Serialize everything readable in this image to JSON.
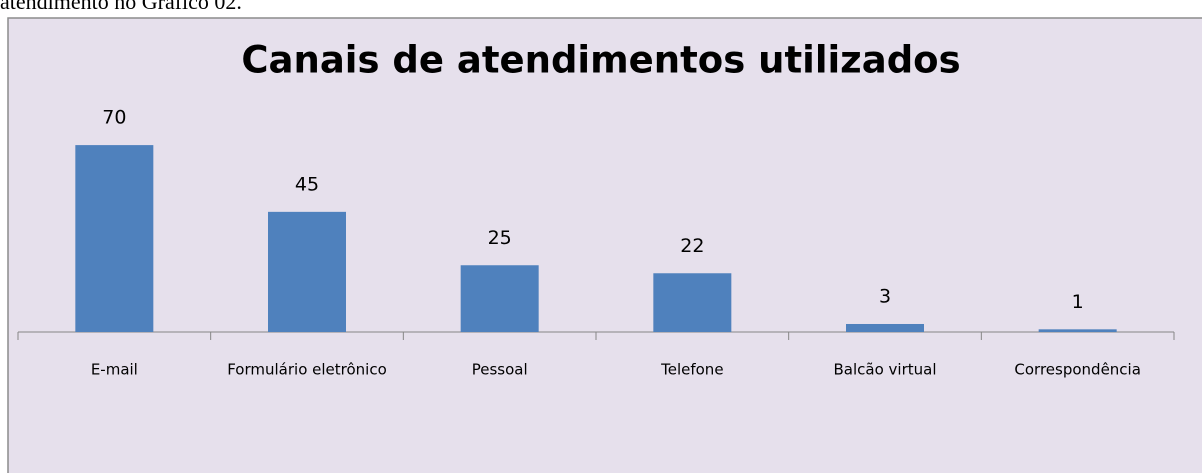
{
  "page_text": "atendimento no Gráfico 02.",
  "chart_data": {
    "type": "bar",
    "title": "Canais de atendimentos utilizados",
    "categories": [
      "E-mail",
      "Formulário eletrônico",
      "Pessoal",
      "Telefone",
      "Balcão virtual",
      "Correspondência"
    ],
    "values": [
      70,
      45,
      25,
      22,
      3,
      1
    ],
    "color": "#4f81bd"
  }
}
